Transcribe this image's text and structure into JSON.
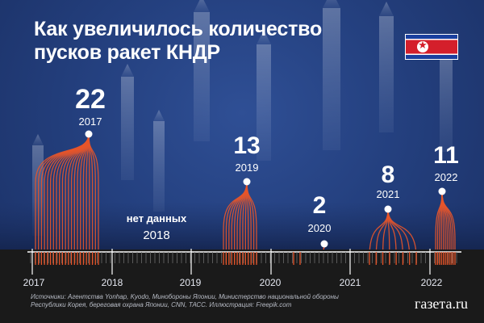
{
  "title_line1": "Как увеличилось количество",
  "title_line2": "пусков ракет КНДР",
  "chart_data": {
    "type": "bar",
    "series": [
      {
        "year": "2017",
        "launches": 22
      },
      {
        "year": "2018",
        "launches": null,
        "label": "нет данных"
      },
      {
        "year": "2019",
        "launches": 13
      },
      {
        "year": "2020",
        "launches": 2
      },
      {
        "year": "2021",
        "launches": 8
      },
      {
        "year": "2022",
        "launches": 11
      }
    ],
    "x_axis_labels": [
      "2017",
      "2018",
      "2019",
      "2020",
      "2021",
      "2022"
    ],
    "colors": {
      "lines": "#e8552a",
      "background": "#24407f"
    }
  },
  "source_text": "Источники: Агентства Yonhap, Kyodo, Минобороны Японии, Министерство национальной обороны Республики Корея, береговая охрана Японии, CNN, ТАСС. Иллюстрация: Freepik.com",
  "logo": "газета.ru"
}
